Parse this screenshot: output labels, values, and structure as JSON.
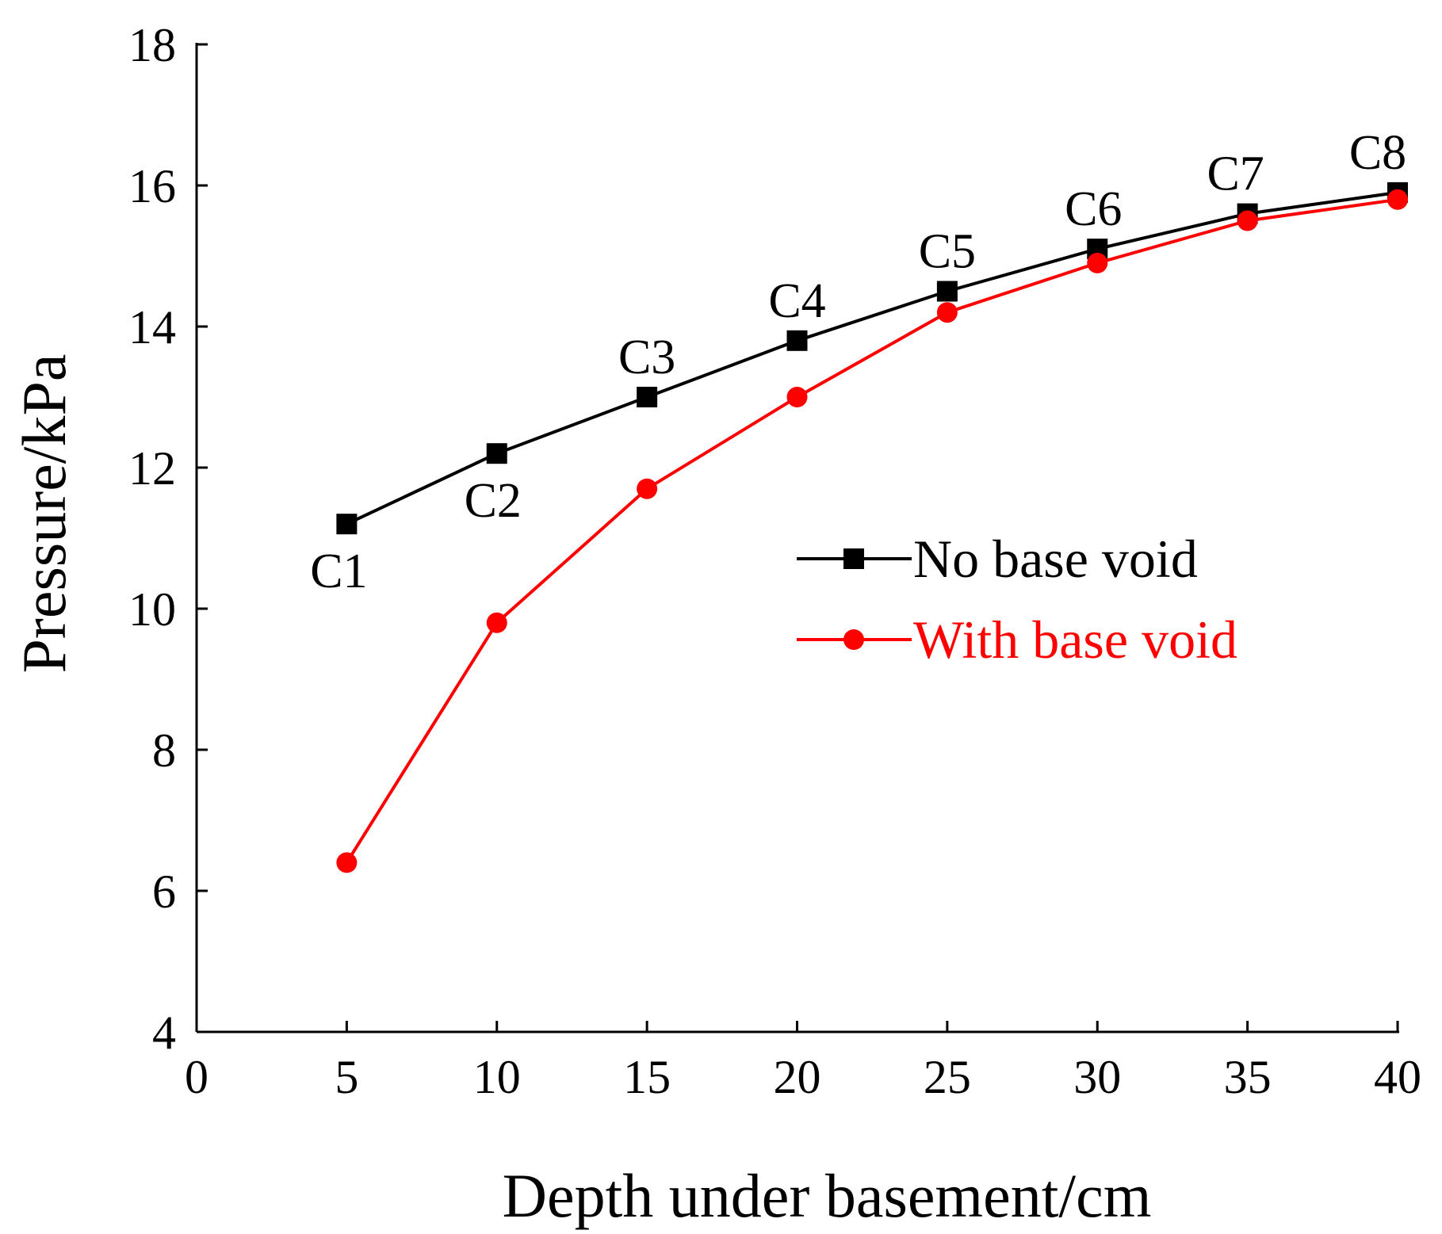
{
  "chart_data": {
    "type": "line",
    "title": "",
    "xlabel": "Depth under basement/cm",
    "ylabel": "Pressure/kPa",
    "xlim": [
      0,
      40
    ],
    "ylim": [
      4,
      18
    ],
    "xticks": [
      0,
      5,
      10,
      15,
      20,
      25,
      30,
      35,
      40
    ],
    "yticks": [
      4,
      6,
      8,
      10,
      12,
      14,
      16,
      18
    ],
    "x": [
      5,
      10,
      15,
      20,
      25,
      30,
      35,
      40
    ],
    "point_labels": [
      "C1",
      "C2",
      "C3",
      "C4",
      "C5",
      "C6",
      "C7",
      "C8"
    ],
    "grid": false,
    "legend_position": "center-right",
    "series": [
      {
        "name": "No base void",
        "color": "#000000",
        "marker": "square",
        "values": [
          11.2,
          12.2,
          13.0,
          13.8,
          14.5,
          15.1,
          15.6,
          15.9
        ]
      },
      {
        "name": "With base void",
        "color": "#ff0000",
        "marker": "circle",
        "values": [
          6.4,
          9.8,
          11.7,
          13.0,
          14.2,
          14.9,
          15.5,
          15.8
        ]
      }
    ]
  }
}
